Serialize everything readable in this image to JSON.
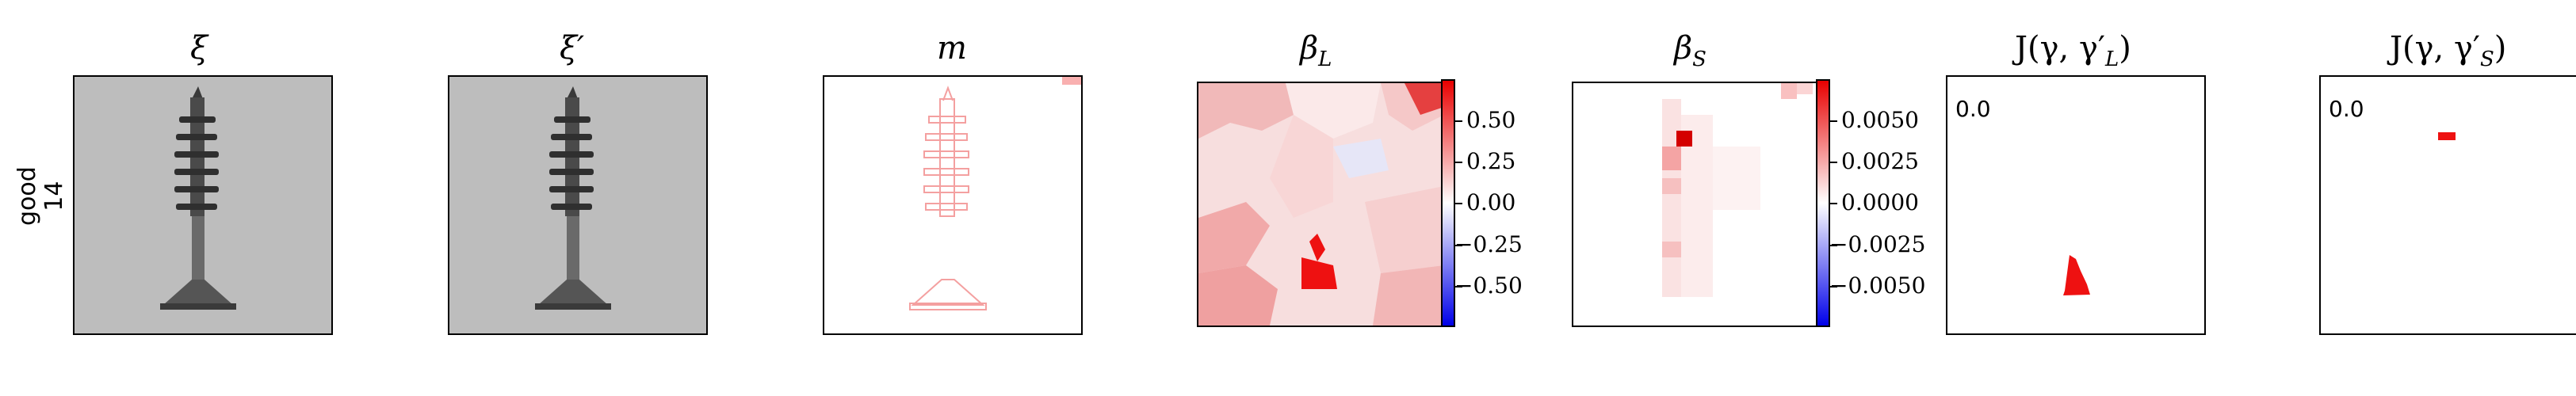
{
  "row_label": {
    "line1": "good",
    "line2": "14"
  },
  "panels": {
    "xi": {
      "title": "ξ"
    },
    "xi_prime": {
      "title": "ξ′"
    },
    "m": {
      "title": "m"
    },
    "beta_L": {
      "title": "β",
      "sub": "L"
    },
    "beta_S": {
      "title": "β",
      "sub": "S"
    },
    "J_L": {
      "title": "J(γ, γ′",
      "sub": "L",
      "close": ")",
      "value": "0.0"
    },
    "J_S": {
      "title": "J(γ, γ′",
      "sub": "S",
      "close": ")",
      "value": "0.0"
    }
  },
  "colorbars": {
    "beta_L": {
      "ticks": [
        "0.50",
        "0.25",
        "0.00",
        "−0.25",
        "−0.50"
      ]
    },
    "beta_S": {
      "ticks": [
        "0.0050",
        "0.0025",
        "0.0000",
        "−0.0025",
        "−0.0050"
      ]
    }
  },
  "colors": {
    "red": "#ee1111",
    "blue": "#1111ee",
    "gray": "#bdbdbd"
  }
}
